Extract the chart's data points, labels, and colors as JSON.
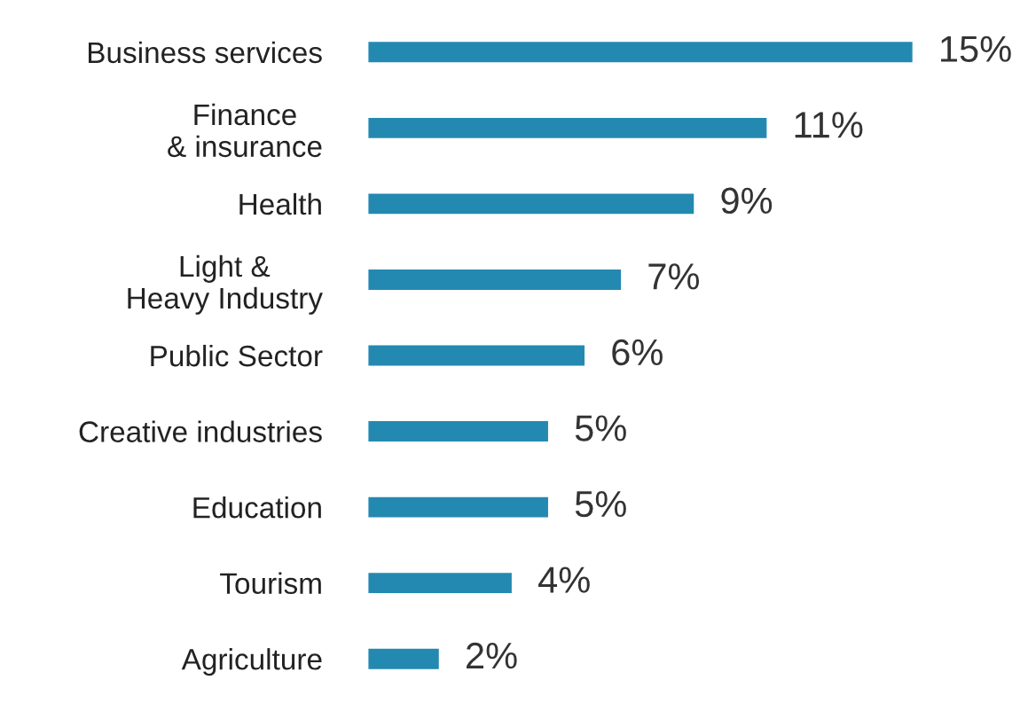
{
  "chart_data": {
    "type": "bar",
    "orientation": "horizontal",
    "categories": [
      "Business services",
      "Finance\n& insurance",
      "Health",
      "Light &\nHeavy Industry",
      "Public Sector",
      "Creative industries",
      "Education",
      "Tourism",
      "Agriculture"
    ],
    "values": [
      15,
      11,
      9,
      7,
      6,
      5,
      5,
      4,
      2
    ],
    "value_labels": [
      "15%",
      "11%",
      "9%",
      "7%",
      "6%",
      "5%",
      "5%",
      "4%",
      "2%"
    ],
    "color": "#2489b0",
    "grid": false,
    "legend": false
  }
}
